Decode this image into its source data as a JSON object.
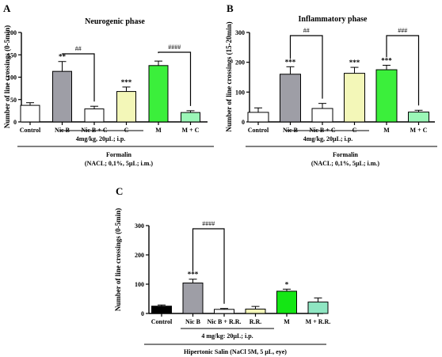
{
  "chart_data": [
    {
      "type": "bar",
      "panel": "A",
      "title": "Neurogenic phase",
      "ylabel": "Number of line crossings (0-5min)",
      "ylim": [
        0,
        200
      ],
      "yticks": [
        "0",
        "50",
        "100",
        "150",
        "200"
      ],
      "categories": [
        "Control",
        "Nic B",
        "Nic B + C",
        "C",
        "M",
        "M + C"
      ],
      "values": [
        37,
        113,
        29,
        68,
        126,
        21
      ],
      "errors": [
        6,
        22,
        6,
        10,
        10,
        4
      ],
      "colors": [
        "#ffffff",
        "#9e9ea6",
        "#ffffff",
        "#f3f7b8",
        "#3bef3b",
        "#9bf7b7"
      ],
      "significance": [
        "",
        "**",
        "",
        "***",
        "",
        ""
      ],
      "brackets": [
        {
          "from": 1,
          "to": 2,
          "label": "##"
        },
        {
          "from": 4,
          "to": 5,
          "label": "####"
        }
      ],
      "dose_label": "4mg/kg, 20µL; i.p.",
      "group_label_1": "Formalin",
      "group_label_2": "(NACL; 0,1%, 5µL; i.m.)"
    },
    {
      "type": "bar",
      "panel": "B",
      "title": "Inflammatory phase",
      "ylabel": "Number of line crossings (15-20min)",
      "ylim": [
        0,
        300
      ],
      "yticks": [
        "0",
        "100",
        "200",
        "300"
      ],
      "categories": [
        "Control",
        "Nic B",
        "Nic B + C",
        "C",
        "M",
        "M + C"
      ],
      "values": [
        32,
        160,
        45,
        163,
        175,
        33
      ],
      "errors": [
        15,
        25,
        17,
        20,
        15,
        6
      ],
      "colors": [
        "#ffffff",
        "#9e9ea6",
        "#ffffff",
        "#f3f7b8",
        "#3bef3b",
        "#9bf7b7"
      ],
      "significance": [
        "",
        "***",
        "",
        "***",
        "***",
        ""
      ],
      "brackets": [
        {
          "from": 1,
          "to": 2,
          "label": "##"
        },
        {
          "from": 4,
          "to": 5,
          "label": "###"
        }
      ],
      "dose_label": "4mg/kg, 20µL; i.p.",
      "group_label_1": "Formalin",
      "group_label_2": "(NACL; 0,1%, 5µL; i.m.)"
    },
    {
      "type": "bar",
      "panel": "C",
      "title": "",
      "ylabel": "Number of line crossings (0-5min)",
      "ylim": [
        0,
        300
      ],
      "yticks": [
        "0",
        "100",
        "200",
        "300"
      ],
      "categories": [
        "Control",
        "Nic B",
        "Nic B + R.R.",
        "R.R.",
        "M",
        "M + R.R."
      ],
      "values": [
        25,
        104,
        14,
        15,
        76,
        39
      ],
      "errors": [
        4,
        13,
        3,
        9,
        7,
        14
      ],
      "colors": [
        "#000000",
        "#9e9ea6",
        "#ffffff",
        "#f3f7b8",
        "#14e614",
        "#8fe6c2"
      ],
      "significance": [
        "",
        "***",
        "",
        "",
        "*",
        ""
      ],
      "brackets": [
        {
          "from": 1,
          "to": 2,
          "label": "####"
        }
      ],
      "dose_label": "4 mg/kg: 20µL; i.p.",
      "group_label_1": "Hipertonic Salin (NaCl 5M, 5 µL, eye)",
      "group_label_2": ""
    }
  ]
}
